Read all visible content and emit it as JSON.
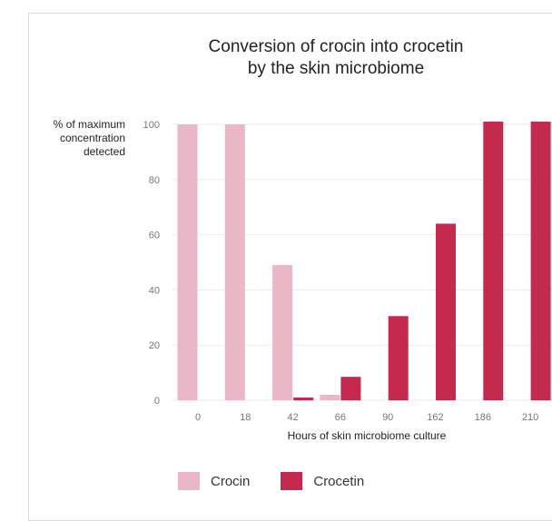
{
  "chart_data": {
    "type": "bar",
    "title_lines": [
      "Conversion of crocin into crocetin",
      "by the skin microbiome"
    ],
    "ylabel_lines": [
      "% of maximum",
      "concentration",
      "detected"
    ],
    "xlabel": "Hours of skin microbiome culture",
    "ylim": [
      0,
      100
    ],
    "yticks": [
      "0",
      "20",
      "40",
      "60",
      "80",
      "100"
    ],
    "categories": [
      "0",
      "18",
      "42",
      "66",
      "90",
      "162",
      "186",
      "210"
    ],
    "grid": true,
    "legend_position": "bottom-left",
    "series": [
      {
        "name": "Crocin",
        "color": "#eab7c6",
        "values": [
          100,
          100,
          49,
          2,
          0,
          0,
          0,
          0
        ]
      },
      {
        "name": "Crocetin",
        "color": "#c32a4d",
        "values": [
          0,
          0,
          1,
          8.5,
          30.5,
          64,
          101,
          101
        ]
      }
    ]
  }
}
